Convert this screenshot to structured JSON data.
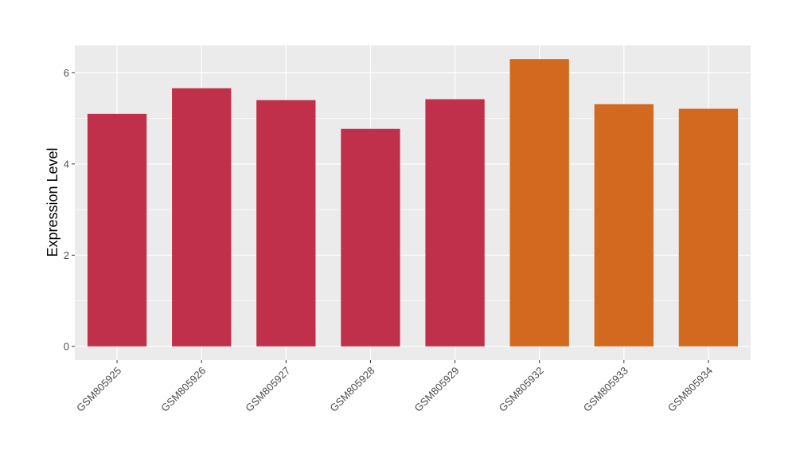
{
  "chart_data": {
    "type": "bar",
    "title": "",
    "xlabel": "",
    "ylabel": "Expression Level",
    "categories": [
      "GSM805925",
      "GSM805926",
      "GSM805927",
      "GSM805928",
      "GSM805929",
      "GSM805932",
      "GSM805933",
      "GSM805934"
    ],
    "values": [
      5.1,
      5.66,
      5.4,
      4.77,
      5.42,
      6.3,
      5.31,
      5.21
    ],
    "bar_colors": [
      "#c0304a",
      "#c0304a",
      "#c0304a",
      "#c0304a",
      "#c0304a",
      "#d2691e",
      "#d2691e",
      "#d2691e"
    ],
    "ylim": [
      -0.3,
      6.6
    ],
    "yticks": [
      0,
      2,
      4,
      6
    ],
    "grid": true,
    "legend": "none",
    "panel_background": "#ebebeb",
    "grid_color": "#ffffff"
  }
}
